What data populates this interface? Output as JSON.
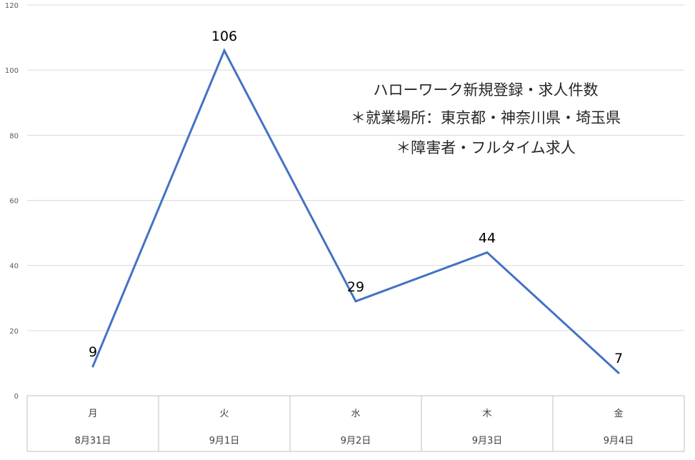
{
  "chart_data": {
    "type": "line",
    "title": "",
    "annotations": [
      "ハローワーク新規登録・求人件数",
      "＊就業場所：東京都・神奈川県・埼玉県",
      "＊障害者・フルタイム求人"
    ],
    "categories": [
      {
        "day": "月",
        "date": "8月31日"
      },
      {
        "day": "火",
        "date": "9月1日"
      },
      {
        "day": "水",
        "date": "9月2日"
      },
      {
        "day": "木",
        "date": "9月3日"
      },
      {
        "day": "金",
        "date": "9月4日"
      }
    ],
    "series": [
      {
        "values": [
          9,
          106,
          29,
          44,
          7
        ],
        "color": "#4472C4",
        "data_labels": true
      }
    ],
    "ylim": [
      0,
      120
    ],
    "yticks": [
      0,
      20,
      40,
      60,
      80,
      100,
      120
    ],
    "grid": true,
    "legend": "none"
  }
}
